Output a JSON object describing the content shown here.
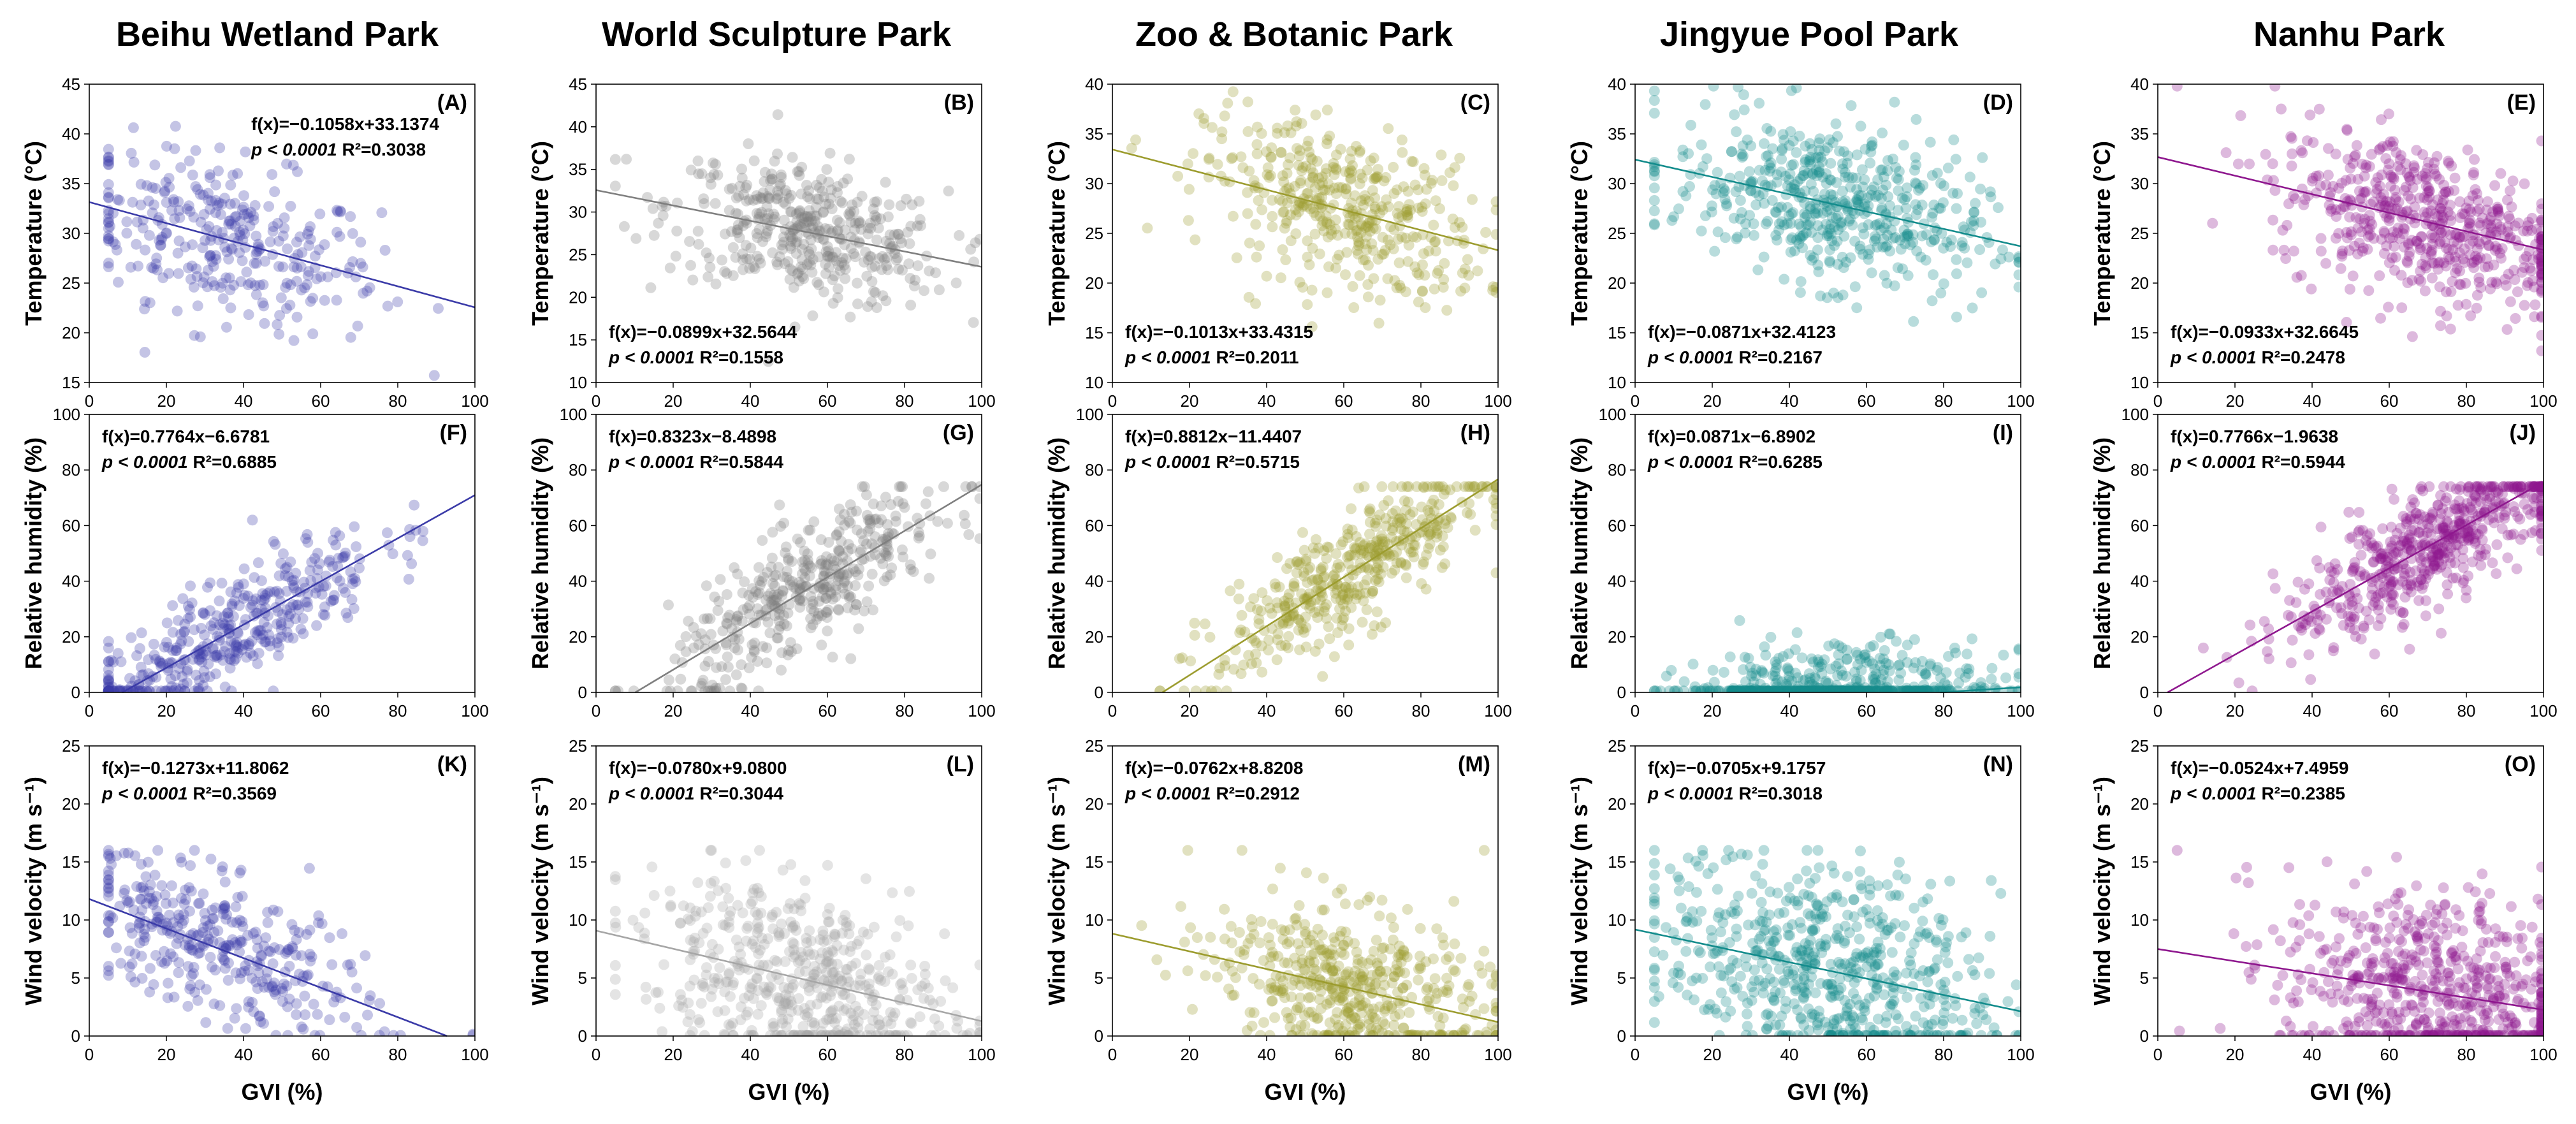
{
  "figure": {
    "x_axis_label": "GVI (%)",
    "x_ticks": [
      "0",
      "20",
      "40",
      "60",
      "80",
      "100"
    ]
  },
  "chart_data": [
    {
      "type": "scatter",
      "park": "Beihu Wetland Park",
      "panel": "(A)",
      "color": "#3b3ba8",
      "ylabel": "Temperature (°C)",
      "ylim": [
        15,
        45
      ],
      "yticks": [
        "15",
        "20",
        "25",
        "30",
        "35",
        "40",
        "45"
      ],
      "xlim": [
        0,
        100
      ],
      "regression": {
        "slope": -0.1058,
        "intercept": 33.1374
      },
      "equation": "f(x)=−0.1058x+33.1374",
      "p_text": "p < 0.0001",
      "r2_text": "R²=0.3038",
      "eq_pos": "top-right",
      "x_center": 35,
      "x_spread": 20,
      "noise": 4,
      "n": 320
    },
    {
      "type": "scatter",
      "park": "World Sculpture Park",
      "panel": "(B)",
      "color": "#7f7f7f",
      "ylabel": "Temperature (°C)",
      "ylim": [
        10,
        45
      ],
      "yticks": [
        "10",
        "15",
        "20",
        "25",
        "30",
        "35",
        "40",
        "45"
      ],
      "xlim": [
        0,
        100
      ],
      "regression": {
        "slope": -0.0899,
        "intercept": 32.5644
      },
      "equation": "f(x)=−0.0899x+32.5644",
      "p_text": "p < 0.0001",
      "r2_text": "R²=0.1558",
      "eq_pos": "bottom-left",
      "x_center": 55,
      "x_spread": 18,
      "noise": 4,
      "n": 420
    },
    {
      "type": "scatter",
      "park": "Zoo & Botanic Park",
      "panel": "(C)",
      "color": "#9c9c2e",
      "ylabel": "Temperature (°C)",
      "ylim": [
        10,
        40
      ],
      "yticks": [
        "10",
        "15",
        "20",
        "25",
        "30",
        "35",
        "40"
      ],
      "xlim": [
        0,
        100
      ],
      "regression": {
        "slope": -0.1013,
        "intercept": 33.4315
      },
      "equation": "f(x)=−0.1013x+33.4315",
      "p_text": "p < 0.0001",
      "r2_text": "R²=0.2011",
      "eq_pos": "bottom-left",
      "x_center": 60,
      "x_spread": 18,
      "noise": 4,
      "n": 420
    },
    {
      "type": "scatter",
      "park": "Jingyue Pool Park",
      "panel": "(D)",
      "color": "#138c8c",
      "ylabel": "Temperature (°C)",
      "ylim": [
        10,
        40
      ],
      "yticks": [
        "10",
        "15",
        "20",
        "25",
        "30",
        "35",
        "40"
      ],
      "xlim": [
        0,
        100
      ],
      "regression": {
        "slope": -0.0871,
        "intercept": 32.4123
      },
      "equation": "f(x)=−0.0871x+32.4123",
      "p_text": "p < 0.0001",
      "r2_text": "R²=0.2167",
      "eq_pos": "bottom-left",
      "x_center": 50,
      "x_spread": 20,
      "noise": 4,
      "n": 520
    },
    {
      "type": "scatter",
      "park": "Nanhu Park",
      "panel": "(E)",
      "color": "#8e178e",
      "ylabel": "Temperature (°C)",
      "ylim": [
        10,
        40
      ],
      "yticks": [
        "10",
        "15",
        "20",
        "25",
        "30",
        "35",
        "40"
      ],
      "xlim": [
        0,
        100
      ],
      "regression": {
        "slope": -0.0933,
        "intercept": 32.6645
      },
      "equation": "f(x)=−0.0933x+32.6645",
      "p_text": "p < 0.0001",
      "r2_text": "R²=0.2478",
      "eq_pos": "bottom-left",
      "x_center": 70,
      "x_spread": 20,
      "noise": 4,
      "n": 560
    },
    {
      "type": "scatter",
      "park": "Beihu Wetland Park",
      "panel": "(F)",
      "color": "#3b3ba8",
      "ylabel": "Relative humidity (%)",
      "ylim": [
        0,
        100
      ],
      "yticks": [
        "0",
        "20",
        "40",
        "60",
        "80",
        "100"
      ],
      "xlim": [
        0,
        100
      ],
      "regression": {
        "slope": 0.7764,
        "intercept": -6.6781
      },
      "equation": "f(x)=0.7764x−6.6781",
      "p_text": "p < 0.0001",
      "r2_text": "R²=0.6885",
      "eq_pos": "top-left",
      "x_center": 35,
      "x_spread": 20,
      "noise": 10,
      "n": 420
    },
    {
      "type": "scatter",
      "park": "World Sculpture Park",
      "panel": "(G)",
      "color": "#7f7f7f",
      "ylabel": "Relative humidity (%)",
      "ylim": [
        0,
        100
      ],
      "yticks": [
        "0",
        "20",
        "40",
        "60",
        "80",
        "100"
      ],
      "xlim": [
        0,
        100
      ],
      "regression": {
        "slope": 0.8323,
        "intercept": -8.4898
      },
      "equation": "f(x)=0.8323x−8.4898",
      "p_text": "p < 0.0001",
      "r2_text": "R²=0.5844",
      "eq_pos": "top-left",
      "x_center": 55,
      "x_spread": 18,
      "noise": 11,
      "n": 420
    },
    {
      "type": "scatter",
      "park": "Zoo & Botanic Park",
      "panel": "(H)",
      "color": "#9c9c2e",
      "ylabel": "Relative humidity (%)",
      "ylim": [
        0,
        100
      ],
      "yticks": [
        "0",
        "20",
        "40",
        "60",
        "80",
        "100"
      ],
      "xlim": [
        0,
        100
      ],
      "regression": {
        "slope": 0.8812,
        "intercept": -11.4407
      },
      "equation": "f(x)=0.8812x−11.4407",
      "p_text": "p < 0.0001",
      "r2_text": "R²=0.5715",
      "eq_pos": "top-left",
      "x_center": 62,
      "x_spread": 18,
      "noise": 11,
      "n": 440
    },
    {
      "type": "scatter",
      "park": "Jingyue Pool Park",
      "panel": "(I)",
      "color": "#138c8c",
      "ylabel": "Relative humidity (%)",
      "ylim": [
        0,
        100
      ],
      "yticks": [
        "0",
        "20",
        "40",
        "60",
        "80",
        "100"
      ],
      "xlim": [
        0,
        100
      ],
      "regression": {
        "slope": 0.0871,
        "intercept": -6.8902
      },
      "equation": "f(x)=0.0871x−6.8902",
      "p_text": "p < 0.0001",
      "r2_text": "R²=0.6285",
      "eq_pos": "top-left",
      "x_center": 52,
      "x_spread": 20,
      "noise": 10,
      "n": 560
    },
    {
      "type": "scatter",
      "park": "Nanhu Park",
      "panel": "(J)",
      "color": "#8e178e",
      "ylabel": "Relative humidity (%)",
      "ylim": [
        0,
        100
      ],
      "yticks": [
        "0",
        "20",
        "40",
        "60",
        "80",
        "100"
      ],
      "xlim": [
        0,
        100
      ],
      "regression": {
        "slope": 0.7766,
        "intercept": -1.9638
      },
      "equation": "f(x)=0.7766x−1.9638",
      "p_text": "p < 0.0001",
      "r2_text": "R²=0.5944",
      "eq_pos": "top-left",
      "x_center": 72,
      "x_spread": 20,
      "noise": 10,
      "n": 600
    },
    {
      "type": "scatter",
      "park": "Beihu Wetland Park",
      "panel": "(K)",
      "color": "#3b3ba8",
      "ylabel": "Wind velocity (m s⁻¹)",
      "ylim": [
        0,
        25
      ],
      "yticks": [
        "0",
        "5",
        "10",
        "15",
        "20",
        "25"
      ],
      "xlim": [
        0,
        100
      ],
      "regression": {
        "slope": -0.1273,
        "intercept": 11.8062
      },
      "equation": "f(x)=−0.1273x+11.8062",
      "p_text": "p < 0.0001",
      "r2_text": "R²=0.3569",
      "eq_pos": "top-left",
      "x_center": 33,
      "x_spread": 20,
      "noise": 3,
      "n": 360
    },
    {
      "type": "scatter",
      "park": "World Sculpture Park",
      "panel": "(L)",
      "color": "#a6a6a6",
      "ylabel": "Wind velocity (m s⁻¹)",
      "ylim": [
        0,
        25
      ],
      "yticks": [
        "0",
        "5",
        "10",
        "15",
        "20",
        "25"
      ],
      "xlim": [
        0,
        100
      ],
      "regression": {
        "slope": -0.078,
        "intercept": 9.08
      },
      "equation": "f(x)=−0.0780x+9.0800",
      "p_text": "p < 0.0001",
      "r2_text": "R²=0.3044",
      "eq_pos": "top-left",
      "x_center": 52,
      "x_spread": 20,
      "noise": 4,
      "n": 520
    },
    {
      "type": "scatter",
      "park": "Zoo & Botanic Park",
      "panel": "(M)",
      "color": "#9c9c2e",
      "ylabel": "Wind velocity (m s⁻¹)",
      "ylim": [
        0,
        25
      ],
      "yticks": [
        "0",
        "5",
        "10",
        "15",
        "20",
        "25"
      ],
      "xlim": [
        0,
        100
      ],
      "regression": {
        "slope": -0.0762,
        "intercept": 8.8208
      },
      "equation": "f(x)=−0.0762x+8.8208",
      "p_text": "p < 0.0001",
      "r2_text": "R²=0.2912",
      "eq_pos": "top-left",
      "x_center": 62,
      "x_spread": 18,
      "noise": 3.5,
      "n": 480
    },
    {
      "type": "scatter",
      "park": "Jingyue Pool Park",
      "panel": "(N)",
      "color": "#138c8c",
      "ylabel": "Wind velocity (m s⁻¹)",
      "ylim": [
        0,
        25
      ],
      "yticks": [
        "0",
        "5",
        "10",
        "15",
        "20",
        "25"
      ],
      "xlim": [
        0,
        100
      ],
      "regression": {
        "slope": -0.0705,
        "intercept": 9.1757
      },
      "equation": "f(x)=−0.0705x+9.1757",
      "p_text": "p < 0.0001",
      "r2_text": "R²=0.3018",
      "eq_pos": "top-left",
      "x_center": 50,
      "x_spread": 22,
      "noise": 4.5,
      "n": 620
    },
    {
      "type": "scatter",
      "park": "Nanhu Park",
      "panel": "(O)",
      "color": "#8e178e",
      "ylabel": "Wind velocity (m s⁻¹)",
      "ylim": [
        0,
        25
      ],
      "yticks": [
        "0",
        "5",
        "10",
        "15",
        "20",
        "25"
      ],
      "xlim": [
        0,
        100
      ],
      "regression": {
        "slope": -0.0524,
        "intercept": 7.4959
      },
      "equation": "f(x)=−0.0524x+7.4959",
      "p_text": "p < 0.0001",
      "r2_text": "R²=0.2385",
      "eq_pos": "top-left",
      "x_center": 72,
      "x_spread": 20,
      "noise": 4.5,
      "n": 640
    }
  ]
}
